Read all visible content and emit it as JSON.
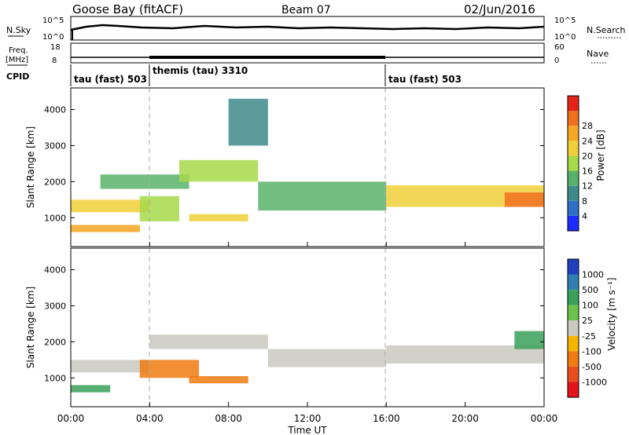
{
  "header": {
    "station": "Goose Bay (fitACF)",
    "beam": "Beam 07",
    "date": "02/Jun/2016"
  },
  "strip_panels": {
    "nsky": {
      "label": "N.Sky",
      "tick_top": "10^5",
      "tick_bottom": "10^0",
      "right_label": "N.Search",
      "right_tick_top": "10^5",
      "right_tick_bottom": "10^0"
    },
    "freq": {
      "label_line1": "Freq.",
      "label_line2": "[MHz]",
      "tick_top": "18",
      "tick_bottom": "8",
      "right_label": "Nave",
      "right_tick_top": "60",
      "right_tick_bottom": "0"
    },
    "cpid": {
      "label": "CPID",
      "segments": [
        {
          "name": "tau (fast) 503",
          "start": 0,
          "end": 4
        },
        {
          "name": "themis (tau) 3310",
          "start": 4,
          "end": 16
        },
        {
          "name": "tau (fast) 503",
          "start": 16,
          "end": 24
        }
      ]
    }
  },
  "x_axis": {
    "title": "Time UT",
    "ticks": [
      "00:00",
      "04:00",
      "08:00",
      "12:00",
      "16:00",
      "20:00",
      "00:00"
    ],
    "range_hours": [
      0,
      24
    ]
  },
  "power_colorbar": {
    "label": "Power [dB]",
    "ticks": [
      "4",
      "8",
      "12",
      "16",
      "20",
      "24",
      "28"
    ],
    "colors": [
      "#1e2dff",
      "#2f6fc7",
      "#3e8a8a",
      "#58b36a",
      "#a7d94a",
      "#f0d03a",
      "#f5a623",
      "#f0701e",
      "#e4231b"
    ]
  },
  "velocity_colorbar": {
    "label": "Velocity [m s⁻¹]",
    "ticks": [
      "1000",
      "500",
      "100",
      "25",
      "-25",
      "-100",
      "-500",
      "-1000"
    ],
    "colors": [
      "#1f3fbf",
      "#2f7fb0",
      "#3aa05a",
      "#6cc24a",
      "#c9c9c0",
      "#f5b400",
      "#f07b12",
      "#e84e1b",
      "#e3141b"
    ]
  },
  "chart_data": [
    {
      "type": "heatmap",
      "name": "power",
      "ylabel": "Slant Range [km]",
      "yticks": [
        "1000",
        "2000",
        "3000",
        "4000"
      ],
      "ylim": [
        200,
        4600
      ],
      "xlim_hours": [
        0,
        24
      ],
      "bands": [
        {
          "t0": 0.0,
          "t1": 4.0,
          "r0": 1150,
          "r1": 1500,
          "value": 20
        },
        {
          "t0": 0.0,
          "t1": 3.5,
          "r0": 600,
          "r1": 800,
          "value": 22
        },
        {
          "t0": 1.5,
          "t1": 6.0,
          "r0": 1800,
          "r1": 2200,
          "value": 12
        },
        {
          "t0": 3.5,
          "t1": 5.5,
          "r0": 900,
          "r1": 1600,
          "value": 16
        },
        {
          "t0": 5.5,
          "t1": 9.5,
          "r0": 2000,
          "r1": 2600,
          "value": 14
        },
        {
          "t0": 6.0,
          "t1": 9.0,
          "r0": 900,
          "r1": 1100,
          "value": 18
        },
        {
          "t0": 9.5,
          "t1": 16.0,
          "r0": 1200,
          "r1": 2000,
          "value": 12
        },
        {
          "t0": 16.0,
          "t1": 24.0,
          "r0": 1300,
          "r1": 1900,
          "value": 20
        },
        {
          "t0": 22.0,
          "t1": 24.0,
          "r0": 1300,
          "r1": 1700,
          "value": 26
        },
        {
          "t0": 8.0,
          "t1": 10.0,
          "r0": 3000,
          "r1": 4300,
          "value": 8
        }
      ]
    },
    {
      "type": "heatmap",
      "name": "velocity",
      "ylabel": "Slant Range [km]",
      "yticks": [
        "1000",
        "2000",
        "3000",
        "4000"
      ],
      "ylim": [
        200,
        4600
      ],
      "xlim_hours": [
        0,
        24
      ],
      "bands": [
        {
          "t0": 0.0,
          "t1": 4.0,
          "r0": 1150,
          "r1": 1500,
          "value": 0
        },
        {
          "t0": 0.0,
          "t1": 2.0,
          "r0": 600,
          "r1": 800,
          "value": 150
        },
        {
          "t0": 3.5,
          "t1": 6.5,
          "r0": 1000,
          "r1": 1500,
          "value": -300
        },
        {
          "t0": 6.0,
          "t1": 9.0,
          "r0": 850,
          "r1": 1050,
          "value": -120
        },
        {
          "t0": 4.0,
          "t1": 10.0,
          "r0": 1800,
          "r1": 2200,
          "value": 0
        },
        {
          "t0": 10.0,
          "t1": 16.0,
          "r0": 1300,
          "r1": 1800,
          "value": 0
        },
        {
          "t0": 16.0,
          "t1": 24.0,
          "r0": 1400,
          "r1": 1900,
          "value": 0
        },
        {
          "t0": 22.5,
          "t1": 24.0,
          "r0": 1800,
          "r1": 2300,
          "value": 150
        }
      ]
    }
  ]
}
